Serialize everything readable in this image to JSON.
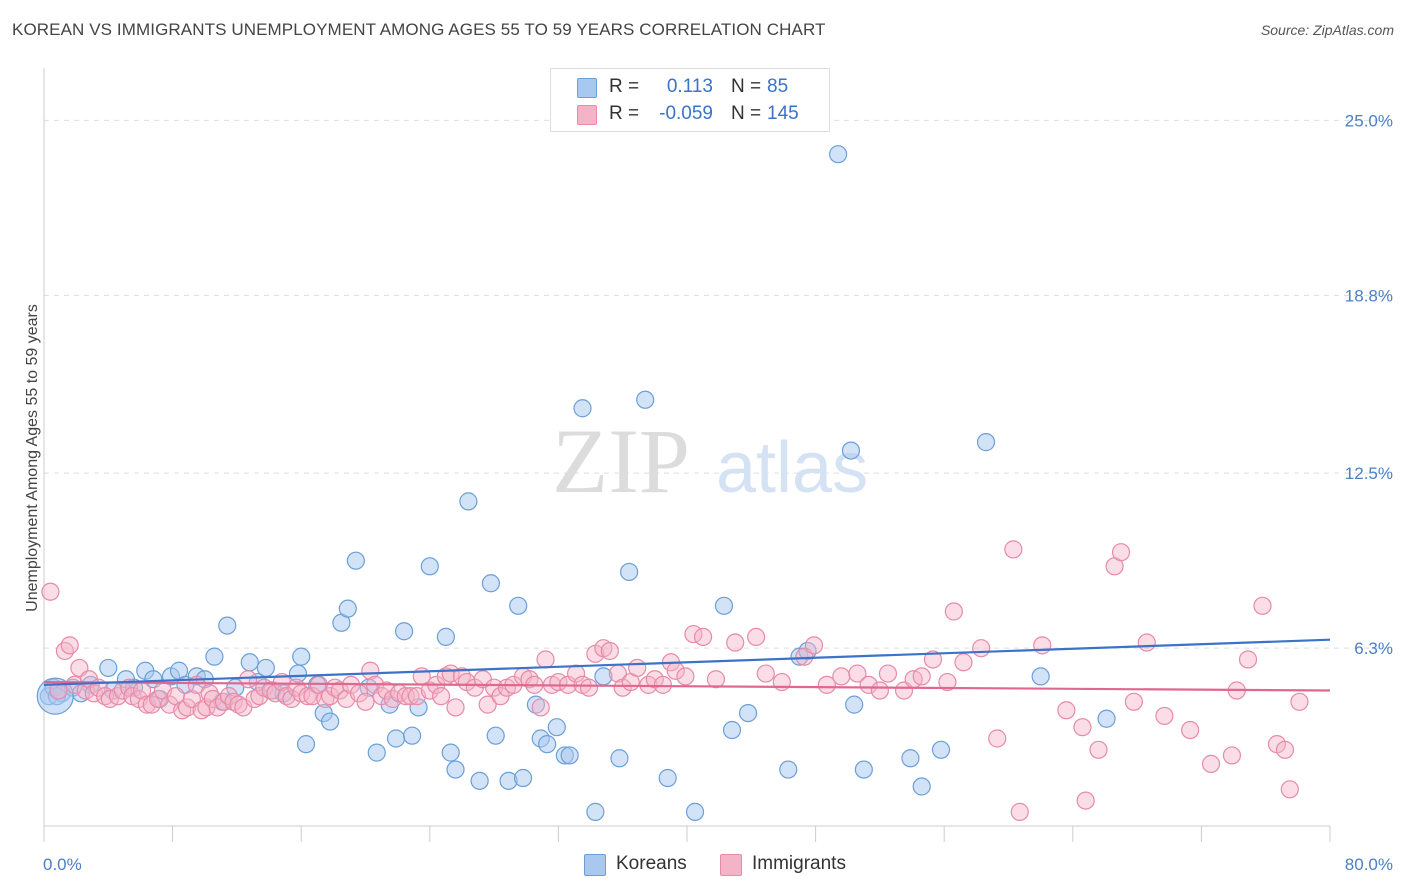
{
  "title": "KOREAN VS IMMIGRANTS UNEMPLOYMENT AMONG AGES 55 TO 59 YEARS CORRELATION CHART",
  "source": "Source: ZipAtlas.com",
  "watermark": {
    "zip": "ZIP",
    "atlas": "atlas"
  },
  "legend": {
    "rows": [
      {
        "r_label": "R =",
        "r_value": "0.113",
        "n_label": "N =",
        "n_value": "85",
        "color": "#a8c8f0"
      },
      {
        "r_label": "R =",
        "r_value": "-0.059",
        "n_label": "N =",
        "n_value": "145",
        "color": "#f5b3c8"
      }
    ]
  },
  "bottom_legend": {
    "koreans": "Koreans",
    "immigrants": "Immigrants"
  },
  "colors": {
    "korean_fill": "#a8c8f0",
    "korean_stroke": "#6a9fd8",
    "korean_line": "#3a73c8",
    "immigrant_fill": "#f5b3c8",
    "immigrant_stroke": "#e88aa8",
    "immigrant_line": "#e06890",
    "tick": "#4a7fc7",
    "grid": "#dddddd"
  },
  "chart_data": {
    "type": "scatter",
    "title": "KOREAN VS IMMIGRANTS UNEMPLOYMENT AMONG AGES 55 TO 59 YEARS CORRELATION CHART",
    "xlabel": "",
    "ylabel": "Unemployment Among Ages 55 to 59 years",
    "xlim": [
      0,
      80
    ],
    "ylim": [
      0,
      26.5
    ],
    "x_tick_labels": [
      "0.0%",
      "80.0%"
    ],
    "y_ticks": [
      6.3,
      12.5,
      18.8,
      25.0
    ],
    "y_tick_labels": [
      "6.3%",
      "12.5%",
      "18.8%",
      "25.0%"
    ],
    "grid": true,
    "legend_position": "top-center",
    "series": [
      {
        "name": "Koreans",
        "trend": {
          "x": [
            0,
            80
          ],
          "y": [
            5.0,
            6.6
          ]
        },
        "points": [
          [
            0.3,
            4.6
          ],
          [
            0.6,
            4.9
          ],
          [
            1.1,
            4.7
          ],
          [
            1.8,
            4.9
          ],
          [
            2.9,
            5.0
          ],
          [
            2.3,
            4.7
          ],
          [
            4.0,
            5.6
          ],
          [
            4.3,
            4.8
          ],
          [
            5.1,
            5.2
          ],
          [
            5.6,
            4.9
          ],
          [
            6.3,
            5.5
          ],
          [
            6.8,
            5.2
          ],
          [
            7.2,
            4.5
          ],
          [
            7.9,
            5.3
          ],
          [
            8.4,
            5.5
          ],
          [
            8.8,
            5.0
          ],
          [
            9.5,
            5.3
          ],
          [
            10.0,
            5.2
          ],
          [
            10.6,
            6.0
          ],
          [
            11.1,
            4.4
          ],
          [
            11.4,
            7.1
          ],
          [
            11.9,
            4.9
          ],
          [
            12.8,
            5.8
          ],
          [
            13.3,
            5.1
          ],
          [
            13.8,
            5.6
          ],
          [
            14.2,
            4.8
          ],
          [
            14.9,
            4.7
          ],
          [
            15.8,
            5.4
          ],
          [
            16.0,
            6.0
          ],
          [
            16.3,
            2.9
          ],
          [
            17.0,
            5.0
          ],
          [
            17.4,
            4.0
          ],
          [
            17.8,
            3.7
          ],
          [
            18.5,
            7.2
          ],
          [
            18.9,
            7.7
          ],
          [
            19.4,
            9.4
          ],
          [
            20.2,
            4.9
          ],
          [
            20.7,
            2.6
          ],
          [
            21.5,
            4.3
          ],
          [
            21.9,
            3.1
          ],
          [
            22.4,
            6.9
          ],
          [
            22.9,
            3.2
          ],
          [
            23.3,
            4.2
          ],
          [
            24.0,
            9.2
          ],
          [
            25.0,
            6.7
          ],
          [
            25.3,
            2.6
          ],
          [
            25.6,
            2.0
          ],
          [
            26.4,
            11.5
          ],
          [
            27.1,
            1.6
          ],
          [
            27.8,
            8.6
          ],
          [
            28.1,
            3.2
          ],
          [
            28.9,
            1.6
          ],
          [
            29.5,
            7.8
          ],
          [
            29.8,
            1.7
          ],
          [
            30.6,
            4.3
          ],
          [
            30.9,
            3.1
          ],
          [
            31.3,
            2.9
          ],
          [
            31.9,
            3.5
          ],
          [
            32.4,
            2.5
          ],
          [
            32.7,
            2.5
          ],
          [
            33.5,
            14.8
          ],
          [
            34.3,
            0.5
          ],
          [
            34.8,
            5.3
          ],
          [
            35.8,
            2.4
          ],
          [
            36.4,
            9.0
          ],
          [
            37.4,
            15.1
          ],
          [
            38.8,
            1.7
          ],
          [
            40.5,
            0.5
          ],
          [
            42.3,
            7.8
          ],
          [
            42.8,
            3.4
          ],
          [
            43.8,
            4.0
          ],
          [
            46.3,
            2.0
          ],
          [
            47.0,
            6.0
          ],
          [
            47.5,
            6.2
          ],
          [
            49.4,
            23.8
          ],
          [
            50.2,
            13.3
          ],
          [
            50.4,
            4.3
          ],
          [
            51.0,
            2.0
          ],
          [
            53.9,
            2.4
          ],
          [
            54.6,
            1.4
          ],
          [
            55.8,
            2.7
          ],
          [
            58.6,
            13.6
          ],
          [
            62.0,
            5.3
          ],
          [
            66.1,
            3.8
          ],
          [
            0.8,
            4.6
          ]
        ],
        "big_points": [
          [
            0.7,
            4.6
          ]
        ]
      },
      {
        "name": "Immigrants",
        "trend": {
          "x": [
            0,
            80
          ],
          "y": [
            5.1,
            4.8
          ]
        },
        "points": [
          [
            0.4,
            8.3
          ],
          [
            0.9,
            4.8
          ],
          [
            1.3,
            6.2
          ],
          [
            1.6,
            6.4
          ],
          [
            1.9,
            5.0
          ],
          [
            2.2,
            5.6
          ],
          [
            2.6,
            4.8
          ],
          [
            2.8,
            5.2
          ],
          [
            3.1,
            4.7
          ],
          [
            3.4,
            4.9
          ],
          [
            3.8,
            4.6
          ],
          [
            4.1,
            4.5
          ],
          [
            4.6,
            4.6
          ],
          [
            4.9,
            4.8
          ],
          [
            5.3,
            4.9
          ],
          [
            5.5,
            4.6
          ],
          [
            5.9,
            4.5
          ],
          [
            6.1,
            4.8
          ],
          [
            6.4,
            4.3
          ],
          [
            6.7,
            4.3
          ],
          [
            7.1,
            4.5
          ],
          [
            7.4,
            4.8
          ],
          [
            7.8,
            4.3
          ],
          [
            8.2,
            4.6
          ],
          [
            8.6,
            4.1
          ],
          [
            8.9,
            4.2
          ],
          [
            9.2,
            4.5
          ],
          [
            9.5,
            5.0
          ],
          [
            9.8,
            4.1
          ],
          [
            10.1,
            4.2
          ],
          [
            10.3,
            4.7
          ],
          [
            10.5,
            4.5
          ],
          [
            10.8,
            4.2
          ],
          [
            11.2,
            4.4
          ],
          [
            11.5,
            4.6
          ],
          [
            11.8,
            4.4
          ],
          [
            12.1,
            4.3
          ],
          [
            12.4,
            4.2
          ],
          [
            12.7,
            5.2
          ],
          [
            13.1,
            4.5
          ],
          [
            13.4,
            4.6
          ],
          [
            13.7,
            4.9
          ],
          [
            14.1,
            4.8
          ],
          [
            14.4,
            4.7
          ],
          [
            14.8,
            5.1
          ],
          [
            15.1,
            4.6
          ],
          [
            15.4,
            4.5
          ],
          [
            15.7,
            4.9
          ],
          [
            16.0,
            4.7
          ],
          [
            16.4,
            4.6
          ],
          [
            16.7,
            4.6
          ],
          [
            17.1,
            5.0
          ],
          [
            17.5,
            4.5
          ],
          [
            17.8,
            4.6
          ],
          [
            18.1,
            4.9
          ],
          [
            18.4,
            4.8
          ],
          [
            18.8,
            4.5
          ],
          [
            19.1,
            5.0
          ],
          [
            19.6,
            4.7
          ],
          [
            20.0,
            4.4
          ],
          [
            20.3,
            5.5
          ],
          [
            20.6,
            5.0
          ],
          [
            21.0,
            4.6
          ],
          [
            21.3,
            4.8
          ],
          [
            21.7,
            4.5
          ],
          [
            22.1,
            4.7
          ],
          [
            22.5,
            4.6
          ],
          [
            22.8,
            4.6
          ],
          [
            23.2,
            4.6
          ],
          [
            23.5,
            5.3
          ],
          [
            24.0,
            4.8
          ],
          [
            24.4,
            5.0
          ],
          [
            24.7,
            4.6
          ],
          [
            25.0,
            5.3
          ],
          [
            25.3,
            5.4
          ],
          [
            25.6,
            4.2
          ],
          [
            26.0,
            5.3
          ],
          [
            26.3,
            5.1
          ],
          [
            26.8,
            4.9
          ],
          [
            27.3,
            5.2
          ],
          [
            27.6,
            4.3
          ],
          [
            28.0,
            4.9
          ],
          [
            28.4,
            4.6
          ],
          [
            28.8,
            4.9
          ],
          [
            29.2,
            5.0
          ],
          [
            29.8,
            5.3
          ],
          [
            30.2,
            5.2
          ],
          [
            30.5,
            5.0
          ],
          [
            30.9,
            4.2
          ],
          [
            31.2,
            5.9
          ],
          [
            31.6,
            5.0
          ],
          [
            32.0,
            5.1
          ],
          [
            32.6,
            5.0
          ],
          [
            33.1,
            5.4
          ],
          [
            33.5,
            5.0
          ],
          [
            33.9,
            4.9
          ],
          [
            34.3,
            6.1
          ],
          [
            34.8,
            6.3
          ],
          [
            35.2,
            6.2
          ],
          [
            35.7,
            5.4
          ],
          [
            36.0,
            4.9
          ],
          [
            36.5,
            5.1
          ],
          [
            36.9,
            5.6
          ],
          [
            37.6,
            5.0
          ],
          [
            38.0,
            5.2
          ],
          [
            38.5,
            5.0
          ],
          [
            39.0,
            5.8
          ],
          [
            39.3,
            5.5
          ],
          [
            39.9,
            5.3
          ],
          [
            40.4,
            6.8
          ],
          [
            41.0,
            6.7
          ],
          [
            41.8,
            5.2
          ],
          [
            43.0,
            6.5
          ],
          [
            44.3,
            6.7
          ],
          [
            44.9,
            5.4
          ],
          [
            45.9,
            5.1
          ],
          [
            47.3,
            6.0
          ],
          [
            47.9,
            6.4
          ],
          [
            48.7,
            5.0
          ],
          [
            49.6,
            5.3
          ],
          [
            50.6,
            5.4
          ],
          [
            51.3,
            5.0
          ],
          [
            52.0,
            4.8
          ],
          [
            52.5,
            5.4
          ],
          [
            53.5,
            4.8
          ],
          [
            54.1,
            5.2
          ],
          [
            54.6,
            5.3
          ],
          [
            55.3,
            5.9
          ],
          [
            56.2,
            5.1
          ],
          [
            56.6,
            7.6
          ],
          [
            57.2,
            5.8
          ],
          [
            58.3,
            6.3
          ],
          [
            59.3,
            3.1
          ],
          [
            60.3,
            9.8
          ],
          [
            60.7,
            0.5
          ],
          [
            62.1,
            6.4
          ],
          [
            63.6,
            4.1
          ],
          [
            64.6,
            3.5
          ],
          [
            64.8,
            0.9
          ],
          [
            65.6,
            2.7
          ],
          [
            66.6,
            9.2
          ],
          [
            67.0,
            9.7
          ],
          [
            67.8,
            4.4
          ],
          [
            68.6,
            6.5
          ],
          [
            69.7,
            3.9
          ],
          [
            71.3,
            3.4
          ],
          [
            72.6,
            2.2
          ],
          [
            73.9,
            2.5
          ],
          [
            74.2,
            4.8
          ],
          [
            74.9,
            5.9
          ],
          [
            75.8,
            7.8
          ],
          [
            76.7,
            2.9
          ],
          [
            77.2,
            2.7
          ],
          [
            78.1,
            4.4
          ],
          [
            77.5,
            1.3
          ]
        ]
      }
    ]
  }
}
